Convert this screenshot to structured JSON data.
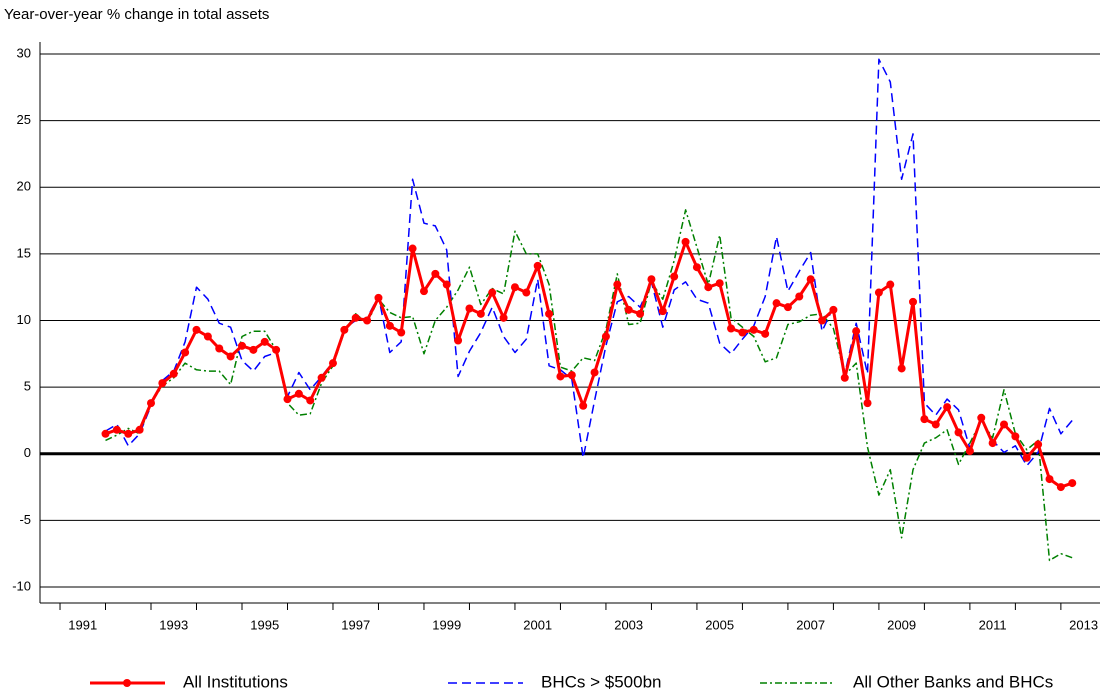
{
  "chart_data": {
    "type": "line",
    "title": "Year-over-year % change in total assets",
    "x": [
      1992,
      1992.25,
      1992.5,
      1992.75,
      1993,
      1993.25,
      1993.5,
      1993.75,
      1994,
      1994.25,
      1994.5,
      1994.75,
      1995,
      1995.25,
      1995.5,
      1995.75,
      1996,
      1996.25,
      1996.5,
      1996.75,
      1997,
      1997.25,
      1997.5,
      1997.75,
      1998,
      1998.25,
      1998.5,
      1998.75,
      1999,
      1999.25,
      1999.5,
      1999.75,
      2000,
      2000.25,
      2000.5,
      2000.75,
      2001,
      2001.25,
      2001.5,
      2001.75,
      2002,
      2002.25,
      2002.5,
      2002.75,
      2003,
      2003.25,
      2003.5,
      2003.75,
      2004,
      2004.25,
      2004.5,
      2004.75,
      2005,
      2005.25,
      2005.5,
      2005.75,
      2006,
      2006.25,
      2006.5,
      2006.75,
      2007,
      2007.25,
      2007.5,
      2007.75,
      2008,
      2008.25,
      2008.5,
      2008.75,
      2009,
      2009.25,
      2009.5,
      2009.75,
      2010,
      2010.25,
      2010.5,
      2010.75,
      2011,
      2011.25,
      2011.5,
      2011.75,
      2012,
      2012.25,
      2012.5,
      2012.75,
      2013,
      2013.25
    ],
    "series": [
      {
        "name": "All Institutions",
        "color": "#ff0000",
        "width": 3,
        "markers": true,
        "values": [
          1.5,
          1.8,
          1.5,
          1.8,
          3.8,
          5.3,
          6.0,
          7.6,
          9.3,
          8.8,
          7.9,
          7.3,
          8.1,
          7.8,
          8.4,
          7.8,
          4.1,
          4.5,
          4.0,
          5.7,
          6.8,
          9.3,
          10.2,
          10.0,
          11.7,
          9.6,
          9.1,
          15.4,
          12.2,
          13.5,
          12.7,
          8.5,
          10.9,
          10.5,
          12.1,
          10.2,
          12.5,
          12.1,
          14.1,
          10.5,
          5.8,
          5.9,
          3.6,
          6.1,
          8.8,
          12.7,
          10.8,
          10.5,
          13.1,
          10.7,
          13.3,
          15.9,
          14.0,
          12.5,
          12.8,
          9.4,
          9.1,
          9.3,
          9.0,
          11.3,
          11.0,
          11.8,
          13.1,
          10.0,
          10.8,
          5.7,
          9.2,
          3.8,
          12.1,
          12.7,
          6.4,
          11.4,
          2.6,
          2.2,
          3.5,
          1.6,
          0.2,
          2.7,
          0.8,
          2.2,
          1.3,
          -0.3,
          0.7,
          -1.9,
          -2.5,
          -2.2
        ]
      },
      {
        "name": "BHCs > $500bn",
        "color": "#0000ff",
        "width": 1.5,
        "dash": "9,5",
        "values": [
          1.7,
          2.2,
          0.6,
          1.5,
          3.6,
          5.5,
          6.2,
          8.4,
          12.5,
          11.6,
          9.8,
          9.5,
          7.0,
          6.2,
          7.3,
          7.6,
          4.3,
          6.1,
          4.8,
          5.8,
          6.9,
          9.4,
          10.0,
          10.2,
          11.8,
          7.6,
          8.4,
          20.6,
          17.3,
          17.1,
          15.3,
          5.8,
          7.7,
          9.1,
          11.0,
          8.8,
          7.6,
          8.6,
          13.1,
          6.6,
          6.3,
          5.6,
          -0.3,
          4.0,
          8.1,
          11.4,
          11.8,
          11.0,
          12.9,
          9.5,
          12.3,
          12.9,
          11.6,
          11.3,
          8.3,
          7.5,
          8.6,
          9.6,
          11.8,
          16.3,
          12.2,
          13.7,
          15.1,
          9.2,
          11.0,
          6.0,
          9.8,
          6.0,
          29.6,
          27.9,
          20.6,
          24.0,
          3.8,
          2.9,
          4.1,
          3.3,
          0.4,
          2.5,
          1.0,
          0.1,
          0.6,
          -0.9,
          0.1,
          3.4,
          1.5,
          2.5
        ]
      },
      {
        "name": "All Other Banks and BHCs",
        "color": "#008000",
        "width": 1.5,
        "dash": "7,3,2,3",
        "values": [
          1.0,
          1.4,
          1.9,
          1.5,
          3.8,
          5.1,
          5.7,
          6.8,
          6.3,
          6.2,
          6.2,
          5.2,
          8.8,
          9.2,
          9.2,
          7.8,
          3.8,
          2.9,
          3.0,
          5.3,
          6.6,
          9.2,
          10.5,
          9.8,
          11.6,
          10.6,
          10.2,
          10.3,
          7.5,
          10.0,
          11.0,
          12.3,
          14.0,
          11.2,
          12.4,
          12.0,
          16.7,
          15.0,
          15.0,
          12.7,
          6.5,
          6.2,
          7.2,
          7.0,
          9.3,
          13.5,
          9.7,
          9.8,
          12.9,
          11.6,
          14.5,
          18.3,
          15.5,
          12.7,
          16.4,
          10.2,
          9.5,
          8.8,
          6.9,
          7.2,
          9.7,
          9.9,
          10.4,
          10.5,
          9.4,
          5.9,
          6.8,
          0.5,
          -3.1,
          -1.2,
          -6.3,
          -1.2,
          0.8,
          1.2,
          1.8,
          -0.8,
          0.8,
          2.5,
          1.2,
          4.8,
          1.5,
          0.3,
          1.0,
          -8.0,
          -7.5,
          -7.8
        ]
      }
    ],
    "xlim": [
      1990.56,
      2013.86
    ],
    "xticks": [
      {
        "value": 1991.5,
        "label": "1991"
      },
      {
        "value": 1993.5,
        "label": "1993"
      },
      {
        "value": 1995.5,
        "label": "1995"
      },
      {
        "value": 1997.5,
        "label": "1997"
      },
      {
        "value": 1999.5,
        "label": "1999"
      },
      {
        "value": 2001.5,
        "label": "2001"
      },
      {
        "value": 2003.5,
        "label": "2003"
      },
      {
        "value": 2005.5,
        "label": "2005"
      },
      {
        "value": 2007.5,
        "label": "2007"
      },
      {
        "value": 2009.5,
        "label": "2009"
      },
      {
        "value": 2011.5,
        "label": "2011"
      },
      {
        "value": 2013.5,
        "label": "2013"
      }
    ],
    "xtick_marks": [
      1991,
      1992,
      1993,
      1994,
      1995,
      1996,
      1997,
      1998,
      1999,
      2000,
      2001,
      2002,
      2003,
      2004,
      2005,
      2006,
      2007,
      2008,
      2009,
      2010,
      2011,
      2012,
      2013
    ],
    "ylim": [
      -11.2,
      30.9
    ],
    "yticks": [
      -10,
      -5,
      0,
      5,
      10,
      15,
      20,
      25,
      30
    ],
    "grid": true,
    "legend": "bottom"
  }
}
